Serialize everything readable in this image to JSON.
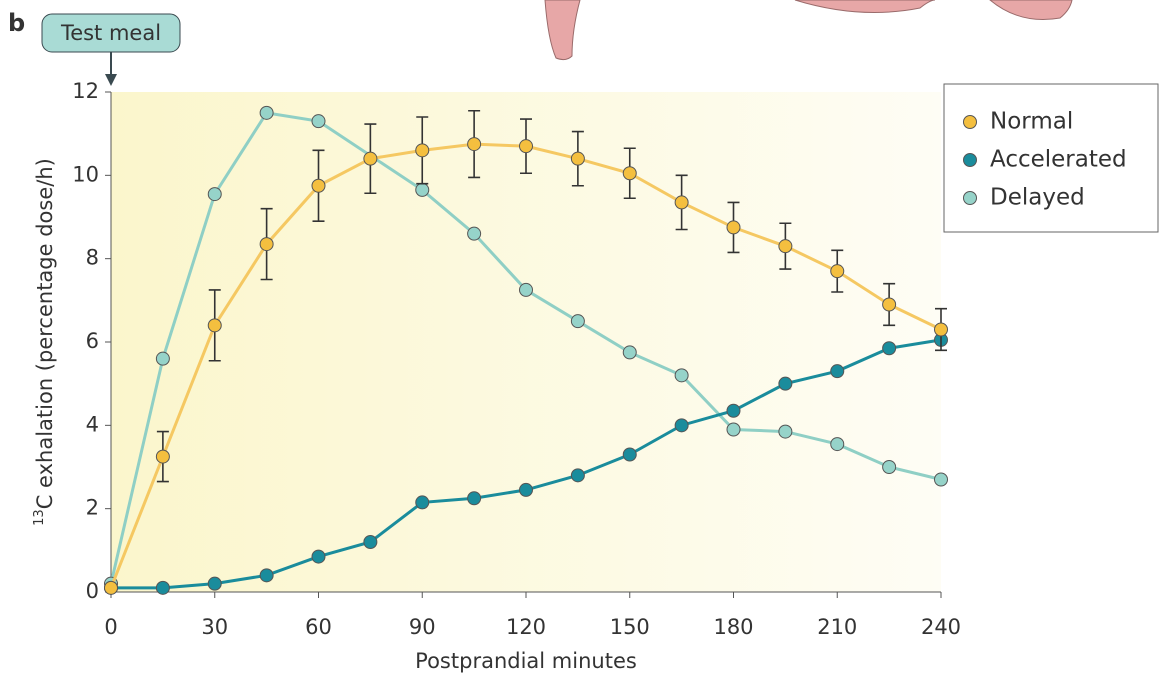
{
  "panel_label": "b",
  "annotation": "Test meal",
  "chart_data": {
    "type": "line",
    "x_label": "Postprandial minutes",
    "y_label_sup": "13",
    "y_label": "C exhalation (percentage dose/h)",
    "x": [
      0,
      15,
      30,
      45,
      60,
      75,
      90,
      105,
      120,
      135,
      150,
      165,
      180,
      195,
      210,
      225,
      240
    ],
    "xlim": [
      0,
      240
    ],
    "xticks": [
      0,
      30,
      60,
      90,
      120,
      150,
      180,
      210,
      240
    ],
    "ylim": [
      0,
      12
    ],
    "yticks": [
      0,
      2,
      4,
      6,
      8,
      10,
      12
    ],
    "legend": "upper right",
    "series": [
      {
        "name": "Normal",
        "color": "#f4bf3f",
        "line_color": "#f5c862",
        "values": [
          0.1,
          3.25,
          6.4,
          8.35,
          9.75,
          10.4,
          10.6,
          10.75,
          10.7,
          10.4,
          10.05,
          9.35,
          8.75,
          8.3,
          7.7,
          6.9,
          6.3
        ],
        "errors": [
          null,
          0.6,
          0.85,
          0.85,
          0.85,
          0.83,
          0.8,
          0.8,
          0.65,
          0.65,
          0.6,
          0.65,
          0.6,
          0.55,
          0.5,
          0.5,
          0.5
        ]
      },
      {
        "name": "Accelerated",
        "color": "#1a8c9c",
        "line_color": "#1a8c9c",
        "values": [
          0.1,
          0.1,
          0.2,
          0.4,
          0.85,
          1.2,
          2.15,
          2.25,
          2.45,
          2.8,
          3.3,
          4.0,
          4.35,
          5.0,
          5.3,
          5.85,
          6.05
        ]
      },
      {
        "name": "Delayed",
        "color": "#96d3c9",
        "line_color": "#8fcfc5",
        "x": [
          0,
          15,
          30,
          45,
          60,
          90,
          105,
          120,
          135,
          150,
          165,
          180,
          195,
          210,
          225,
          240
        ],
        "values": [
          0.2,
          5.6,
          9.55,
          11.5,
          11.3,
          9.65,
          8.6,
          7.25,
          6.5,
          5.75,
          5.2,
          3.9,
          3.85,
          3.55,
          3.0,
          2.7
        ]
      }
    ]
  }
}
